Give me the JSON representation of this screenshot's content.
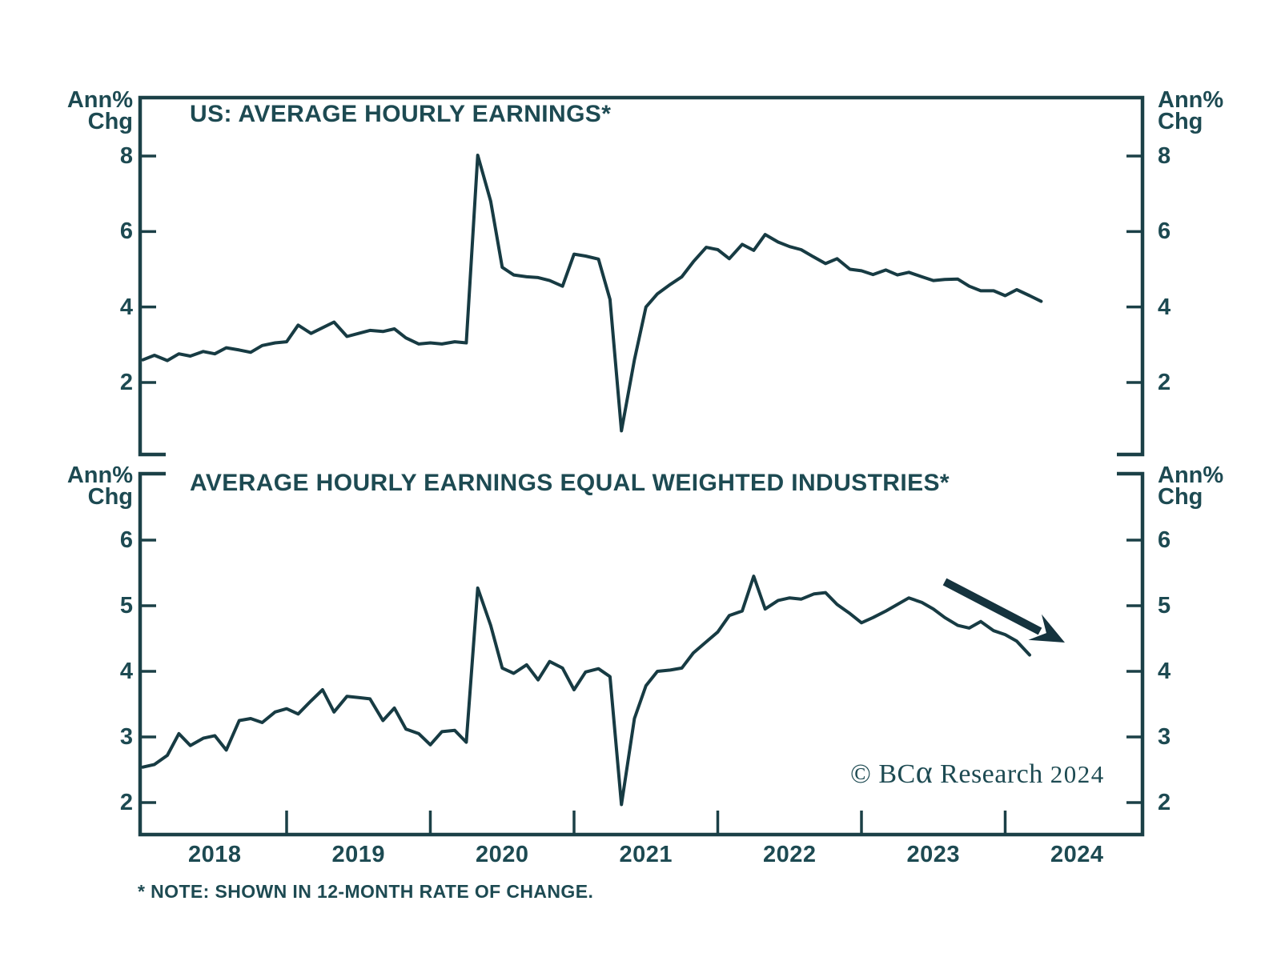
{
  "page": {
    "background": "#ffffff"
  },
  "colors": {
    "text": "#1d4a52",
    "line": "#173b43",
    "arrow": "#15333e",
    "frame": "#1b4047"
  },
  "axis_unit": {
    "line1": "Ann%",
    "line2": "Chg"
  },
  "note": "* NOTE: SHOWN IN 12-MONTH RATE OF CHANGE.",
  "logo": {
    "copyright": "©",
    "brand_bc": "BC",
    "brand_alpha": "α",
    "name": "Research",
    "year": "2024"
  },
  "annotation": {
    "arrow_direction": "down-right"
  },
  "x_axis": {
    "year_labels": [
      "2018",
      "2019",
      "2020",
      "2021",
      "2022",
      "2023",
      "2024"
    ],
    "tick_years": [
      2019,
      2020,
      2021,
      2022,
      2023,
      2024
    ],
    "xlim": [
      2017.98,
      2024.95
    ]
  },
  "chart_data": [
    {
      "type": "line",
      "title": "US: AVERAGE HOURLY EARNINGS*",
      "ylabel": "Ann% Chg",
      "x_unit": "decimal_year",
      "yticks": [
        8,
        6,
        4,
        2
      ],
      "ylim": [
        0.0,
        9.55
      ],
      "grid": false,
      "points": [
        [
          2018.0,
          2.6
        ],
        [
          2018.08,
          2.72
        ],
        [
          2018.17,
          2.58
        ],
        [
          2018.25,
          2.76
        ],
        [
          2018.33,
          2.7
        ],
        [
          2018.42,
          2.82
        ],
        [
          2018.5,
          2.76
        ],
        [
          2018.58,
          2.92
        ],
        [
          2018.67,
          2.86
        ],
        [
          2018.75,
          2.8
        ],
        [
          2018.83,
          2.98
        ],
        [
          2018.92,
          3.05
        ],
        [
          2019.0,
          3.08
        ],
        [
          2019.08,
          3.52
        ],
        [
          2019.17,
          3.3
        ],
        [
          2019.25,
          3.45
        ],
        [
          2019.33,
          3.6
        ],
        [
          2019.42,
          3.22
        ],
        [
          2019.5,
          3.3
        ],
        [
          2019.58,
          3.38
        ],
        [
          2019.67,
          3.35
        ],
        [
          2019.75,
          3.42
        ],
        [
          2019.83,
          3.18
        ],
        [
          2019.92,
          3.02
        ],
        [
          2020.0,
          3.05
        ],
        [
          2020.08,
          3.02
        ],
        [
          2020.17,
          3.08
        ],
        [
          2020.25,
          3.05
        ],
        [
          2020.33,
          8.02
        ],
        [
          2020.42,
          6.8
        ],
        [
          2020.5,
          5.05
        ],
        [
          2020.58,
          4.85
        ],
        [
          2020.67,
          4.8
        ],
        [
          2020.75,
          4.78
        ],
        [
          2020.83,
          4.7
        ],
        [
          2020.92,
          4.55
        ],
        [
          2021.0,
          5.4
        ],
        [
          2021.08,
          5.35
        ],
        [
          2021.17,
          5.27
        ],
        [
          2021.25,
          4.2
        ],
        [
          2021.33,
          0.72
        ],
        [
          2021.42,
          2.6
        ],
        [
          2021.5,
          4.0
        ],
        [
          2021.58,
          4.35
        ],
        [
          2021.67,
          4.6
        ],
        [
          2021.75,
          4.8
        ],
        [
          2021.83,
          5.2
        ],
        [
          2021.92,
          5.58
        ],
        [
          2022.0,
          5.52
        ],
        [
          2022.08,
          5.28
        ],
        [
          2022.17,
          5.66
        ],
        [
          2022.25,
          5.5
        ],
        [
          2022.33,
          5.92
        ],
        [
          2022.42,
          5.72
        ],
        [
          2022.5,
          5.6
        ],
        [
          2022.58,
          5.52
        ],
        [
          2022.67,
          5.32
        ],
        [
          2022.75,
          5.15
        ],
        [
          2022.83,
          5.28
        ],
        [
          2022.92,
          5.0
        ],
        [
          2023.0,
          4.96
        ],
        [
          2023.08,
          4.86
        ],
        [
          2023.17,
          4.98
        ],
        [
          2023.25,
          4.85
        ],
        [
          2023.33,
          4.92
        ],
        [
          2023.42,
          4.8
        ],
        [
          2023.5,
          4.7
        ],
        [
          2023.58,
          4.73
        ],
        [
          2023.67,
          4.74
        ],
        [
          2023.75,
          4.55
        ],
        [
          2023.83,
          4.43
        ],
        [
          2023.92,
          4.43
        ],
        [
          2024.0,
          4.3
        ],
        [
          2024.08,
          4.46
        ],
        [
          2024.17,
          4.3
        ],
        [
          2024.25,
          4.15
        ]
      ]
    },
    {
      "type": "line",
      "title": "AVERAGE HOURLY EARNINGS EQUAL WEIGHTED INDUSTRIES*",
      "ylabel": "Ann% Chg",
      "x_unit": "decimal_year",
      "yticks": [
        6,
        5,
        4,
        3,
        2
      ],
      "ylim": [
        1.5,
        7.0
      ],
      "grid": false,
      "points": [
        [
          2018.0,
          2.54
        ],
        [
          2018.08,
          2.58
        ],
        [
          2018.17,
          2.72
        ],
        [
          2018.25,
          3.05
        ],
        [
          2018.33,
          2.87
        ],
        [
          2018.42,
          2.98
        ],
        [
          2018.5,
          3.02
        ],
        [
          2018.58,
          2.8
        ],
        [
          2018.67,
          3.25
        ],
        [
          2018.75,
          3.28
        ],
        [
          2018.83,
          3.22
        ],
        [
          2018.92,
          3.38
        ],
        [
          2019.0,
          3.43
        ],
        [
          2019.08,
          3.35
        ],
        [
          2019.17,
          3.55
        ],
        [
          2019.25,
          3.72
        ],
        [
          2019.33,
          3.38
        ],
        [
          2019.42,
          3.62
        ],
        [
          2019.5,
          3.6
        ],
        [
          2019.58,
          3.58
        ],
        [
          2019.67,
          3.25
        ],
        [
          2019.75,
          3.44
        ],
        [
          2019.83,
          3.12
        ],
        [
          2019.92,
          3.05
        ],
        [
          2020.0,
          2.88
        ],
        [
          2020.08,
          3.08
        ],
        [
          2020.17,
          3.1
        ],
        [
          2020.25,
          2.92
        ],
        [
          2020.33,
          5.27
        ],
        [
          2020.42,
          4.7
        ],
        [
          2020.5,
          4.05
        ],
        [
          2020.58,
          3.97
        ],
        [
          2020.67,
          4.1
        ],
        [
          2020.75,
          3.87
        ],
        [
          2020.83,
          4.15
        ],
        [
          2020.92,
          4.05
        ],
        [
          2021.0,
          3.72
        ],
        [
          2021.08,
          3.99
        ],
        [
          2021.17,
          4.04
        ],
        [
          2021.25,
          3.92
        ],
        [
          2021.33,
          1.97
        ],
        [
          2021.42,
          3.28
        ],
        [
          2021.5,
          3.78
        ],
        [
          2021.58,
          4.0
        ],
        [
          2021.67,
          4.02
        ],
        [
          2021.75,
          4.05
        ],
        [
          2021.83,
          4.28
        ],
        [
          2021.92,
          4.45
        ],
        [
          2022.0,
          4.6
        ],
        [
          2022.08,
          4.85
        ],
        [
          2022.17,
          4.92
        ],
        [
          2022.25,
          5.45
        ],
        [
          2022.33,
          4.95
        ],
        [
          2022.42,
          5.08
        ],
        [
          2022.5,
          5.12
        ],
        [
          2022.58,
          5.1
        ],
        [
          2022.67,
          5.18
        ],
        [
          2022.75,
          5.2
        ],
        [
          2022.83,
          5.02
        ],
        [
          2022.92,
          4.88
        ],
        [
          2023.0,
          4.74
        ],
        [
          2023.08,
          4.82
        ],
        [
          2023.17,
          4.92
        ],
        [
          2023.25,
          5.02
        ],
        [
          2023.33,
          5.12
        ],
        [
          2023.42,
          5.05
        ],
        [
          2023.5,
          4.95
        ],
        [
          2023.58,
          4.82
        ],
        [
          2023.67,
          4.7
        ],
        [
          2023.75,
          4.66
        ],
        [
          2023.83,
          4.76
        ],
        [
          2023.92,
          4.62
        ],
        [
          2024.0,
          4.56
        ],
        [
          2024.08,
          4.46
        ],
        [
          2024.17,
          4.25
        ]
      ]
    }
  ]
}
